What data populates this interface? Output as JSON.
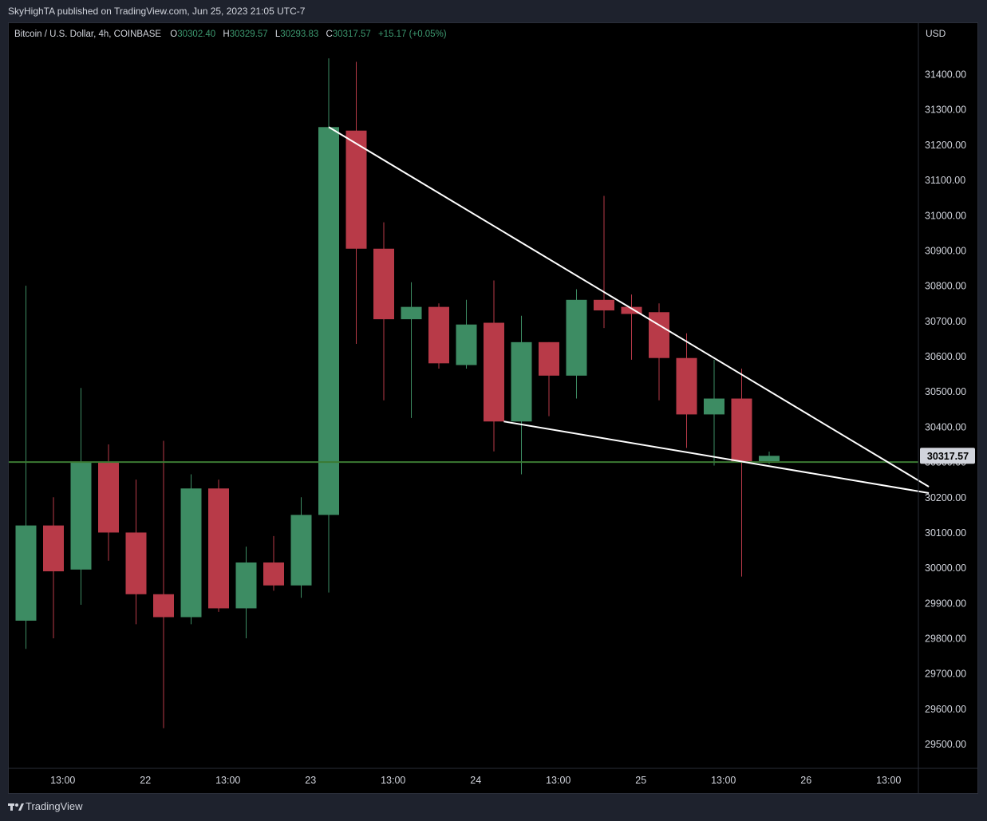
{
  "header": {
    "published": "SkyHighTA published on TradingView.com, Jun 25, 2023 21:05 UTC-7"
  },
  "legend": {
    "symbol": "Bitcoin / U.S. Dollar, 4h, COINBASE",
    "open_label": "O",
    "open": "30302.40",
    "high_label": "H",
    "high": "30329.57",
    "low_label": "L",
    "low": "30293.83",
    "close_label": "C",
    "close": "30317.57",
    "change": "+15.17 (+0.05%)"
  },
  "axis": {
    "currency": "USD",
    "price_label": "30317.57"
  },
  "footer": {
    "brand": "TradingView"
  },
  "colors": {
    "up": "#3d8c63",
    "down": "#b83a48",
    "up_text": "#26a69a",
    "hline": "#3b7a33",
    "trendline": "#ffffff",
    "axis_text": "#d1d4dc"
  },
  "chart_data": {
    "type": "candlestick",
    "ylim": [
      29420,
      31520
    ],
    "y_ticks": [
      29500,
      29600,
      29700,
      29800,
      29900,
      30000,
      30100,
      30200,
      30300,
      30400,
      30500,
      30600,
      30700,
      30800,
      30900,
      31000,
      31100,
      31200,
      31300,
      31400
    ],
    "x_ticks": [
      {
        "index": 1.34,
        "label": "13:00"
      },
      {
        "index": 4.34,
        "label": "22"
      },
      {
        "index": 7.34,
        "label": "13:00"
      },
      {
        "index": 10.34,
        "label": "23"
      },
      {
        "index": 13.34,
        "label": "13:00"
      },
      {
        "index": 16.34,
        "label": "24"
      },
      {
        "index": 19.34,
        "label": "13:00"
      },
      {
        "index": 22.34,
        "label": "25"
      },
      {
        "index": 25.34,
        "label": "13:00"
      },
      {
        "index": 28.34,
        "label": "26"
      },
      {
        "index": 31.34,
        "label": "13:00"
      }
    ],
    "candles": [
      {
        "o": 29850,
        "h": 30800,
        "l": 29770,
        "c": 30120
      },
      {
        "o": 30120,
        "h": 30200,
        "l": 29800,
        "c": 29990
      },
      {
        "o": 29995,
        "h": 30510,
        "l": 29895,
        "c": 30300
      },
      {
        "o": 30300,
        "h": 30350,
        "l": 30020,
        "c": 30100
      },
      {
        "o": 30100,
        "h": 30250,
        "l": 29840,
        "c": 29925
      },
      {
        "o": 29925,
        "h": 30360,
        "l": 29545,
        "c": 29860
      },
      {
        "o": 29860,
        "h": 30265,
        "l": 29840,
        "c": 30225
      },
      {
        "o": 30225,
        "h": 30250,
        "l": 29875,
        "c": 29885
      },
      {
        "o": 29885,
        "h": 30060,
        "l": 29800,
        "c": 30015
      },
      {
        "o": 30015,
        "h": 30090,
        "l": 29935,
        "c": 29950
      },
      {
        "o": 29950,
        "h": 30200,
        "l": 29915,
        "c": 30150
      },
      {
        "o": 30150,
        "h": 31445,
        "l": 29930,
        "c": 31250
      },
      {
        "o": 31240,
        "h": 31435,
        "l": 30635,
        "c": 30905
      },
      {
        "o": 30905,
        "h": 30980,
        "l": 30475,
        "c": 30705
      },
      {
        "o": 30705,
        "h": 30810,
        "l": 30425,
        "c": 30740
      },
      {
        "o": 30740,
        "h": 30750,
        "l": 30565,
        "c": 30580
      },
      {
        "o": 30575,
        "h": 30760,
        "l": 30565,
        "c": 30690
      },
      {
        "o": 30695,
        "h": 30815,
        "l": 30330,
        "c": 30415
      },
      {
        "o": 30415,
        "h": 30715,
        "l": 30265,
        "c": 30640
      },
      {
        "o": 30640,
        "h": 30640,
        "l": 30430,
        "c": 30545
      },
      {
        "o": 30545,
        "h": 30790,
        "l": 30480,
        "c": 30760
      },
      {
        "o": 30760,
        "h": 31055,
        "l": 30680,
        "c": 30730
      },
      {
        "o": 30740,
        "h": 30775,
        "l": 30590,
        "c": 30720
      },
      {
        "o": 30725,
        "h": 30750,
        "l": 30475,
        "c": 30595
      },
      {
        "o": 30595,
        "h": 30665,
        "l": 30340,
        "c": 30435
      },
      {
        "o": 30435,
        "h": 30590,
        "l": 30290,
        "c": 30480
      },
      {
        "o": 30480,
        "h": 30565,
        "l": 29975,
        "c": 30300
      },
      {
        "o": 30302.4,
        "h": 30329.57,
        "l": 30293.83,
        "c": 30317.57
      }
    ],
    "horizontal_line": 30300,
    "trendlines": [
      {
        "x1": 11.0,
        "y1": 31250,
        "x2": 32.8,
        "y2": 30230
      },
      {
        "x1": 17.36,
        "y1": 30415,
        "x2": 32.8,
        "y2": 30212
      }
    ]
  }
}
